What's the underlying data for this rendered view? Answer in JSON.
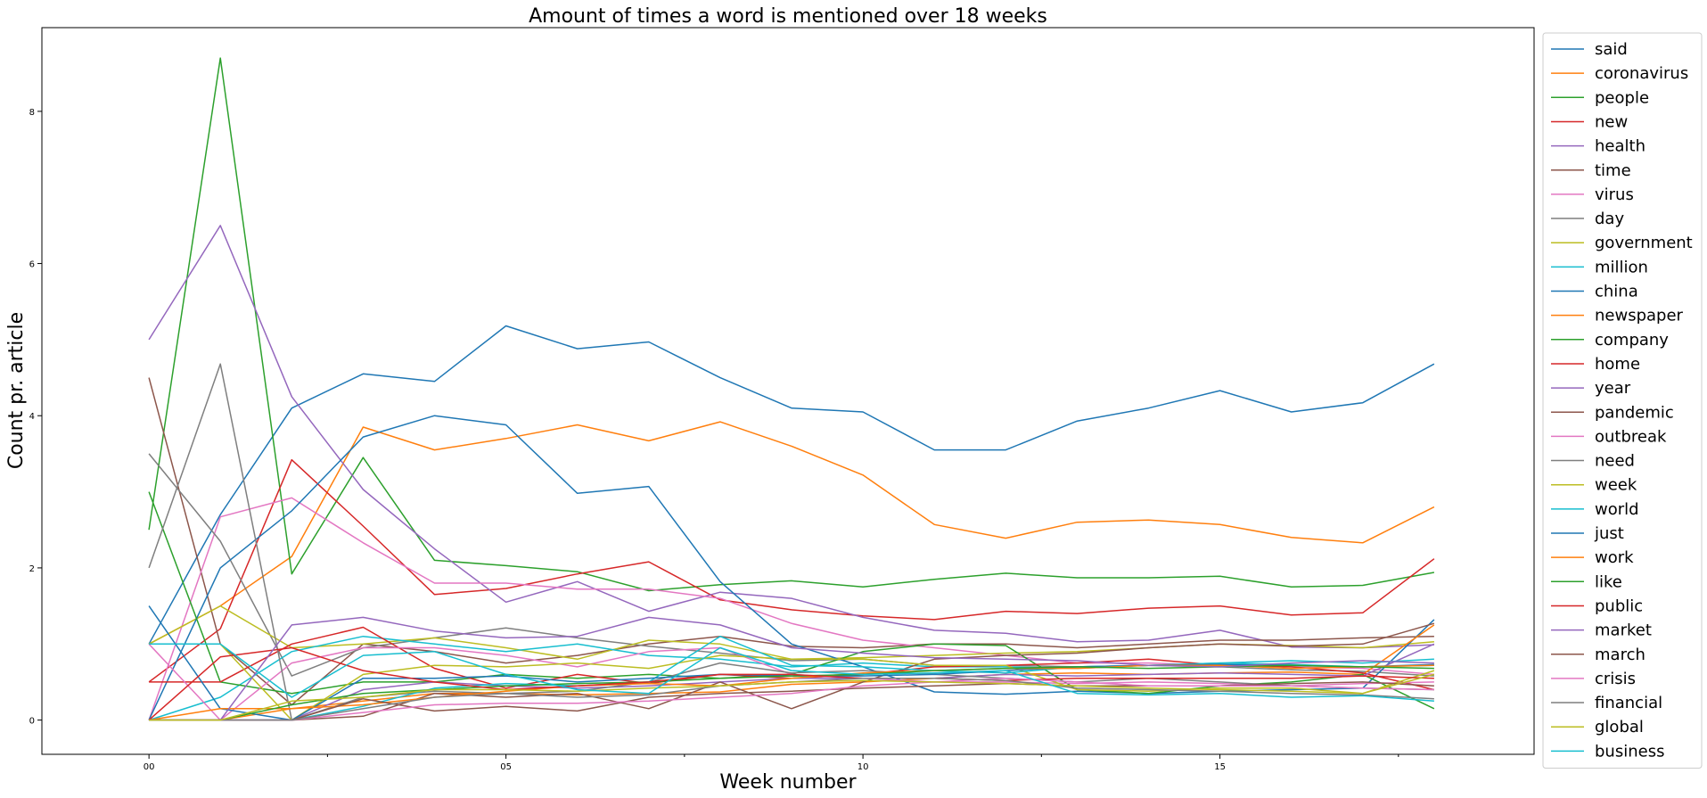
{
  "chart_data": {
    "type": "line",
    "title": "Amount of times a word is mentioned over 18 weeks",
    "xlabel": "Week number",
    "ylabel": "Count pr. article",
    "xlim": [
      -1.5,
      19.4
    ],
    "ylim": [
      -0.45,
      9.1
    ],
    "x": [
      0,
      1,
      2,
      3,
      4,
      5,
      6,
      7,
      8,
      9,
      10,
      11,
      12,
      13,
      14,
      15,
      16,
      17,
      18
    ],
    "x_ticks": [
      {
        "value": 0,
        "label": "00"
      },
      {
        "value": 5,
        "label": "05"
      },
      {
        "value": 10,
        "label": "10"
      },
      {
        "value": 15,
        "label": "15"
      }
    ],
    "x_minor_ticks": [
      2.5,
      7.5,
      12.5,
      17.5
    ],
    "y_ticks": [
      {
        "value": 0,
        "label": "0"
      },
      {
        "value": 2,
        "label": "2"
      },
      {
        "value": 4,
        "label": "4"
      },
      {
        "value": 6,
        "label": "6"
      },
      {
        "value": 8,
        "label": "8"
      }
    ],
    "grid": false,
    "legend_position": "right-outside",
    "series": [
      {
        "name": "said",
        "color": "#1f77b4",
        "values": [
          1.0,
          2.7,
          4.1,
          4.55,
          4.45,
          5.18,
          4.88,
          4.97,
          4.5,
          4.1,
          4.05,
          3.55,
          3.55,
          3.93,
          4.1,
          4.33,
          4.05,
          4.17,
          4.68
        ]
      },
      {
        "name": "coronavirus",
        "color": "#ff7f0e",
        "values": [
          1.0,
          1.5,
          2.15,
          3.85,
          3.55,
          3.7,
          3.88,
          3.67,
          3.92,
          3.6,
          3.22,
          2.57,
          2.39,
          2.6,
          2.63,
          2.57,
          2.4,
          2.33,
          2.8
        ]
      },
      {
        "name": "people",
        "color": "#2ca02c",
        "values": [
          2.5,
          8.7,
          1.92,
          3.45,
          2.1,
          2.03,
          1.95,
          1.7,
          1.78,
          1.83,
          1.75,
          1.85,
          1.93,
          1.87,
          1.87,
          1.89,
          1.75,
          1.77,
          1.94
        ]
      },
      {
        "name": "new",
        "color": "#d62728",
        "values": [
          0.5,
          1.2,
          3.42,
          2.55,
          1.65,
          1.73,
          1.92,
          2.08,
          1.58,
          1.45,
          1.37,
          1.32,
          1.43,
          1.4,
          1.47,
          1.5,
          1.38,
          1.41,
          2.12
        ]
      },
      {
        "name": "health",
        "color": "#9467bd",
        "values": [
          5.0,
          6.5,
          4.25,
          3.03,
          2.25,
          1.55,
          1.82,
          1.43,
          1.68,
          1.6,
          1.35,
          1.18,
          1.14,
          1.03,
          1.05,
          1.18,
          0.96,
          0.95,
          0.99
        ]
      },
      {
        "name": "time",
        "color": "#8c564b",
        "values": [
          4.5,
          1.0,
          0.2,
          1.0,
          0.9,
          0.75,
          0.85,
          1.0,
          1.1,
          0.97,
          0.95,
          1.0,
          1.0,
          0.95,
          1.0,
          1.05,
          1.05,
          1.08,
          1.1
        ]
      },
      {
        "name": "virus",
        "color": "#e377c2",
        "values": [
          0.0,
          2.67,
          2.92,
          2.33,
          1.8,
          1.8,
          1.72,
          1.72,
          1.6,
          1.27,
          1.05,
          0.95,
          0.85,
          0.75,
          0.75,
          0.72,
          0.7,
          0.68,
          0.6
        ]
      },
      {
        "name": "day",
        "color": "#7f7f7f",
        "values": [
          3.5,
          2.35,
          0.58,
          0.95,
          1.08,
          1.21,
          1.08,
          0.97,
          0.88,
          0.78,
          0.8,
          0.72,
          0.72,
          0.7,
          0.72,
          0.7,
          0.66,
          0.64,
          0.58
        ]
      },
      {
        "name": "government",
        "color": "#bcbd22",
        "values": [
          1.0,
          1.5,
          0.95,
          1.0,
          1.08,
          0.95,
          0.8,
          1.05,
          1.0,
          0.8,
          0.82,
          0.85,
          0.88,
          0.9,
          0.95,
          1.0,
          0.98,
          0.95,
          1.03
        ]
      },
      {
        "name": "million",
        "color": "#17becf",
        "values": [
          0.0,
          0.3,
          0.9,
          1.1,
          1.0,
          0.9,
          1.0,
          0.85,
          0.8,
          0.7,
          0.75,
          0.7,
          0.7,
          0.68,
          0.72,
          0.75,
          0.73,
          0.7,
          0.72
        ]
      },
      {
        "name": "china",
        "color": "#1f77b4",
        "values": [
          0.0,
          2.0,
          2.75,
          3.72,
          4.0,
          3.88,
          2.98,
          3.07,
          1.82,
          1.0,
          0.7,
          0.37,
          0.34,
          0.38,
          0.35,
          0.38,
          0.4,
          0.42,
          1.32
        ]
      },
      {
        "name": "newspaper",
        "color": "#ff7f0e",
        "values": [
          0.0,
          0.0,
          0.15,
          0.25,
          0.35,
          0.35,
          0.33,
          0.35,
          0.37,
          0.47,
          0.5,
          0.55,
          0.6,
          0.62,
          0.6,
          0.62,
          0.63,
          0.6,
          1.25
        ]
      },
      {
        "name": "company",
        "color": "#2ca02c",
        "values": [
          3.0,
          0.5,
          0.35,
          0.5,
          0.5,
          0.6,
          0.55,
          0.6,
          0.55,
          0.6,
          0.9,
          1.0,
          0.98,
          0.4,
          0.35,
          0.45,
          0.5,
          0.6,
          0.15
        ]
      },
      {
        "name": "home",
        "color": "#d62728",
        "values": [
          0.5,
          0.5,
          1.0,
          1.22,
          0.68,
          0.42,
          0.6,
          0.48,
          0.6,
          0.55,
          0.6,
          0.7,
          0.72,
          0.75,
          0.8,
          0.72,
          0.7,
          0.62,
          0.4
        ]
      },
      {
        "name": "year",
        "color": "#9467bd",
        "values": [
          0.0,
          0.0,
          0.0,
          0.4,
          0.5,
          0.45,
          0.42,
          0.45,
          0.5,
          0.55,
          0.55,
          0.55,
          0.6,
          0.58,
          0.6,
          0.62,
          0.6,
          0.58,
          1.0
        ]
      },
      {
        "name": "pandemic",
        "color": "#8c564b",
        "values": [
          0.0,
          0.0,
          0.0,
          0.05,
          0.35,
          0.3,
          0.35,
          0.15,
          0.5,
          0.15,
          0.5,
          0.8,
          0.85,
          0.88,
          0.95,
          1.0,
          0.97,
          1.0,
          1.27
        ]
      },
      {
        "name": "outbreak",
        "color": "#e377c2",
        "values": [
          1.0,
          0.0,
          0.75,
          0.95,
          0.95,
          0.85,
          0.7,
          0.9,
          0.95,
          0.6,
          0.55,
          0.5,
          0.5,
          0.48,
          0.5,
          0.48,
          0.45,
          0.48,
          0.5
        ]
      },
      {
        "name": "need",
        "color": "#7f7f7f",
        "values": [
          2.0,
          4.68,
          0.0,
          0.3,
          0.38,
          0.35,
          0.38,
          0.5,
          0.75,
          0.62,
          0.65,
          0.6,
          0.55,
          0.5,
          0.55,
          0.5,
          0.45,
          0.42,
          0.4
        ]
      },
      {
        "name": "week",
        "color": "#bcbd22",
        "values": [
          1.0,
          1.0,
          0.0,
          0.6,
          0.72,
          0.7,
          0.75,
          0.68,
          0.85,
          0.8,
          0.8,
          0.72,
          0.72,
          0.4,
          0.38,
          0.42,
          0.42,
          0.35,
          0.65
        ]
      },
      {
        "name": "world",
        "color": "#17becf",
        "values": [
          0.0,
          0.0,
          0.0,
          0.18,
          0.42,
          0.48,
          0.45,
          0.5,
          1.1,
          0.72,
          0.7,
          0.65,
          0.62,
          0.7,
          0.72,
          0.75,
          0.78,
          0.75,
          0.8
        ]
      },
      {
        "name": "just",
        "color": "#1f77b4",
        "values": [
          1.5,
          0.15,
          0.0,
          0.55,
          0.55,
          0.58,
          0.5,
          0.55,
          0.6,
          0.58,
          0.58,
          0.6,
          0.65,
          0.7,
          0.72,
          0.73,
          0.72,
          0.7,
          0.73
        ]
      },
      {
        "name": "work",
        "color": "#ff7f0e",
        "values": [
          0.0,
          0.15,
          0.15,
          0.2,
          0.3,
          0.38,
          0.45,
          0.48,
          0.45,
          0.55,
          0.62,
          0.65,
          0.68,
          0.68,
          0.72,
          0.72,
          0.68,
          0.7,
          0.72
        ]
      },
      {
        "name": "like",
        "color": "#2ca02c",
        "values": [
          0.0,
          0.0,
          0.2,
          0.35,
          0.4,
          0.45,
          0.48,
          0.5,
          0.55,
          0.58,
          0.6,
          0.65,
          0.68,
          0.7,
          0.68,
          0.7,
          0.72,
          0.7,
          0.68
        ]
      },
      {
        "name": "public",
        "color": "#d62728",
        "values": [
          0.0,
          0.83,
          0.95,
          0.65,
          0.5,
          0.4,
          0.45,
          0.5,
          0.6,
          0.6,
          0.55,
          0.55,
          0.52,
          0.55,
          0.55,
          0.55,
          0.55,
          0.58,
          0.55
        ]
      },
      {
        "name": "market",
        "color": "#9467bd",
        "values": [
          0.0,
          0.0,
          1.25,
          1.35,
          1.17,
          1.08,
          1.1,
          1.35,
          1.25,
          0.95,
          0.88,
          0.82,
          0.8,
          0.78,
          0.72,
          0.7,
          0.75,
          0.78,
          0.75
        ]
      },
      {
        "name": "march",
        "color": "#8c564b",
        "values": [
          0.0,
          0.0,
          0.0,
          0.28,
          0.12,
          0.18,
          0.12,
          0.3,
          0.35,
          0.38,
          0.42,
          0.45,
          0.48,
          0.45,
          0.45,
          0.45,
          0.48,
          0.5,
          0.45
        ]
      },
      {
        "name": "crisis",
        "color": "#e377c2",
        "values": [
          0.0,
          0.0,
          0.0,
          0.1,
          0.2,
          0.22,
          0.22,
          0.25,
          0.3,
          0.35,
          0.45,
          0.5,
          0.55,
          0.5,
          0.45,
          0.45,
          0.45,
          0.42,
          0.4
        ]
      },
      {
        "name": "financial",
        "color": "#7f7f7f",
        "values": [
          0.0,
          0.0,
          0.0,
          0.15,
          0.3,
          0.35,
          0.3,
          0.33,
          0.45,
          0.5,
          0.55,
          0.55,
          0.52,
          0.42,
          0.4,
          0.38,
          0.35,
          0.33,
          0.28
        ]
      },
      {
        "name": "global",
        "color": "#bcbd22",
        "values": [
          0.0,
          0.0,
          0.25,
          0.3,
          0.4,
          0.4,
          0.38,
          0.42,
          0.45,
          0.5,
          0.52,
          0.5,
          0.48,
          0.45,
          0.42,
          0.4,
          0.38,
          0.35,
          0.6
        ]
      },
      {
        "name": "business",
        "color": "#17becf",
        "values": [
          1.0,
          1.0,
          0.3,
          0.85,
          0.9,
          0.6,
          0.4,
          0.35,
          0.95,
          0.65,
          0.6,
          0.62,
          0.65,
          0.35,
          0.33,
          0.35,
          0.3,
          0.32,
          0.25
        ]
      }
    ]
  }
}
